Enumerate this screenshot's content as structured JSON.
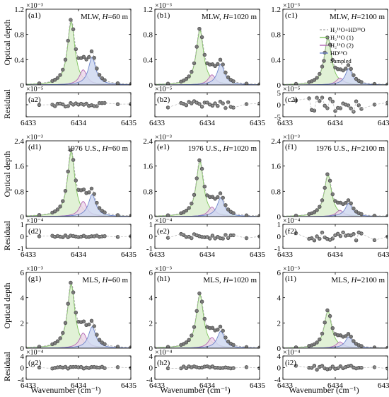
{
  "figure": {
    "legend": {
      "entries": [
        {
          "label": "H₂¹⁶O+HD¹⁶O",
          "kind": "dashed-line",
          "color": "#a8a8a8"
        },
        {
          "label": "H₂¹⁶O (1)",
          "kind": "fill",
          "color": "#7cc35a",
          "fill": "#dcefcf"
        },
        {
          "label": "H₂¹⁶O (2)",
          "kind": "fill",
          "color": "#b066b3",
          "fill": "#ecd6ea"
        },
        {
          "label": "HD¹⁶O",
          "kind": "fill",
          "color": "#6f86cc",
          "fill": "#cfd8f0"
        },
        {
          "label": "Sampled",
          "kind": "marker",
          "color": "#7a7a7a"
        }
      ]
    },
    "xlabel": "Wavenumber (cm⁻¹)",
    "ylabel_main": "Optical depth",
    "ylabel_residual": "Residual"
  },
  "chart_data": [
    {
      "panel": "a1",
      "type": "line",
      "text": "MLW, H=60 m",
      "exponent": "×10⁻³",
      "ylim": [
        0,
        1.2
      ],
      "yticks": [
        0,
        0.4,
        0.8,
        1.2
      ],
      "xticks": [
        6433,
        6434,
        6435
      ],
      "x_range": [
        6433,
        6435
      ],
      "peaks": [
        {
          "name": "H₂¹⁶O (1)",
          "center": 6433.86,
          "height": 1.0
        },
        {
          "name": "H₂¹⁶O (2)",
          "center": 6434.09,
          "height": 0.24
        },
        {
          "name": "HD¹⁶O",
          "center": 6434.26,
          "height": 0.44
        }
      ]
    },
    {
      "panel": "b1",
      "type": "line",
      "text": "MLW, H=1020 m",
      "exponent": "×10⁻³",
      "ylim": [
        0,
        1.2
      ],
      "yticks": [
        0,
        0.4,
        0.8,
        1.2
      ],
      "xticks": [
        6433,
        6434,
        6435
      ],
      "x_range": [
        6433,
        6435
      ],
      "peaks": [
        {
          "name": "H₂¹⁶O (1)",
          "center": 6433.86,
          "height": 0.87
        },
        {
          "name": "H₂¹⁶O (2)",
          "center": 6434.09,
          "height": 0.16
        },
        {
          "name": "HD¹⁶O",
          "center": 6434.26,
          "height": 0.33
        }
      ]
    },
    {
      "panel": "c1",
      "type": "line",
      "text": "MLW, H=2100 m",
      "exponent": "×10⁻³",
      "ylim": [
        0,
        1.2
      ],
      "yticks": [
        0,
        0.4,
        0.8,
        1.2
      ],
      "xticks": [
        6433,
        6434,
        6435
      ],
      "x_range": [
        6433,
        6435
      ],
      "peaks": [
        {
          "name": "H₂¹⁶O (1)",
          "center": 6433.86,
          "height": 0.74
        },
        {
          "name": "H₂¹⁶O (2)",
          "center": 6434.09,
          "height": 0.11
        },
        {
          "name": "HD¹⁶O",
          "center": 6434.26,
          "height": 0.26
        }
      ]
    },
    {
      "panel": "a2",
      "type": "scatter",
      "exponent": "×10⁻⁵",
      "ylim": [
        -5,
        5
      ],
      "yticks": [
        -5,
        0,
        5
      ],
      "ytick_labels": [
        "",
        "",
        ""
      ],
      "xticks": [
        6433,
        6434,
        6435
      ],
      "x_range": [
        6433,
        6435
      ],
      "scatter": 0.15
    },
    {
      "panel": "b2",
      "type": "scatter",
      "exponent": "×10⁻⁵",
      "ylim": [
        -5,
        5
      ],
      "yticks": [
        -5,
        0,
        5
      ],
      "ytick_labels": [
        "",
        "",
        ""
      ],
      "xticks": [
        6433,
        6434,
        6435
      ],
      "x_range": [
        6433,
        6435
      ],
      "scatter": 0.3
    },
    {
      "panel": "c2",
      "type": "scatter",
      "exponent": "×10⁻⁵",
      "ylim": [
        -5,
        5
      ],
      "yticks": [
        -5,
        0,
        5
      ],
      "ytick_labels": [
        "-5",
        "0",
        "5"
      ],
      "xticks": [
        6433,
        6434,
        6435
      ],
      "x_range": [
        6433,
        6435
      ],
      "scatter": 0.6
    },
    {
      "panel": "d1",
      "type": "line",
      "text": "1976 U.S., H=60 m",
      "exponent": "×10⁻³",
      "ylim": [
        0,
        2.4
      ],
      "yticks": [
        0,
        0.8,
        1.6,
        2.4
      ],
      "xticks": [
        6433,
        6434,
        6435
      ],
      "x_range": [
        6433,
        6435
      ],
      "peaks": [
        {
          "name": "H₂¹⁶O (1)",
          "center": 6433.86,
          "height": 2.05
        },
        {
          "name": "H₂¹⁶O (2)",
          "center": 6434.09,
          "height": 0.48
        },
        {
          "name": "HD¹⁶O",
          "center": 6434.26,
          "height": 0.7
        }
      ]
    },
    {
      "panel": "e1",
      "type": "line",
      "text": "1976 U.S., H=1020 m",
      "exponent": "×10⁻³",
      "ylim": [
        0,
        2.4
      ],
      "yticks": [
        0,
        0.8,
        1.6,
        2.4
      ],
      "xticks": [
        6433,
        6434,
        6435
      ],
      "x_range": [
        6433,
        6435
      ],
      "peaks": [
        {
          "name": "H₂¹⁶O (1)",
          "center": 6433.86,
          "height": 1.75
        },
        {
          "name": "H₂¹⁶O (2)",
          "center": 6434.09,
          "height": 0.3
        },
        {
          "name": "HD¹⁶O",
          "center": 6434.26,
          "height": 0.6
        }
      ]
    },
    {
      "panel": "f1",
      "type": "line",
      "text": "1976 U.S., H=2100 m",
      "exponent": "×10⁻³",
      "ylim": [
        0,
        2.4
      ],
      "yticks": [
        0,
        0.8,
        1.6,
        2.4
      ],
      "xticks": [
        6433,
        6434,
        6435
      ],
      "x_range": [
        6433,
        6435
      ],
      "peaks": [
        {
          "name": "H₂¹⁶O (1)",
          "center": 6433.86,
          "height": 1.32
        },
        {
          "name": "H₂¹⁶O (2)",
          "center": 6434.09,
          "height": 0.2
        },
        {
          "name": "HD¹⁶O",
          "center": 6434.26,
          "height": 0.42
        }
      ]
    },
    {
      "panel": "d2",
      "type": "scatter",
      "exponent": "×10⁻⁴",
      "ylim": [
        -1,
        1
      ],
      "yticks": [
        -1,
        0,
        1
      ],
      "ytick_labels": [
        "-1",
        "0",
        "1"
      ],
      "xticks": [
        6433,
        6434,
        6435
      ],
      "x_range": [
        6433,
        6435
      ],
      "scatter": 0.08
    },
    {
      "panel": "e2",
      "type": "scatter",
      "exponent": "×10⁻⁴",
      "ylim": [
        -1,
        1
      ],
      "yticks": [
        -1,
        0,
        1
      ],
      "ytick_labels": [
        "-1",
        "0",
        "1"
      ],
      "xticks": [
        6433,
        6434,
        6435
      ],
      "x_range": [
        6433,
        6435
      ],
      "scatter": 0.2
    },
    {
      "panel": "f2",
      "type": "scatter",
      "exponent": "×10⁻⁴",
      "ylim": [
        -1,
        1
      ],
      "yticks": [
        -1,
        0,
        1
      ],
      "ytick_labels": [
        "-1",
        "0",
        "1"
      ],
      "xticks": [
        6433,
        6434,
        6435
      ],
      "x_range": [
        6433,
        6435
      ],
      "scatter": 0.35
    },
    {
      "panel": "g1",
      "type": "line",
      "text": "MLS, H=60 m",
      "exponent": "×10⁻³",
      "ylim": [
        0,
        6
      ],
      "yticks": [
        0,
        2,
        4,
        6
      ],
      "xticks": [
        6433,
        6434,
        6435
      ],
      "x_range": [
        6433,
        6435
      ],
      "peaks": [
        {
          "name": "H₂¹⁶O (1)",
          "center": 6433.86,
          "height": 5.05
        },
        {
          "name": "H₂¹⁶O (2)",
          "center": 6434.09,
          "height": 1.2
        },
        {
          "name": "HD¹⁶O",
          "center": 6434.26,
          "height": 1.7
        }
      ]
    },
    {
      "panel": "h1",
      "type": "line",
      "text": "MLS, H=1020 m",
      "exponent": "×10⁻³",
      "ylim": [
        0,
        6
      ],
      "yticks": [
        0,
        2,
        4,
        6
      ],
      "xticks": [
        6433,
        6434,
        6435
      ],
      "x_range": [
        6433,
        6435
      ],
      "peaks": [
        {
          "name": "H₂¹⁶O (1)",
          "center": 6433.86,
          "height": 4.25
        },
        {
          "name": "H₂¹⁶O (2)",
          "center": 6434.09,
          "height": 0.85
        },
        {
          "name": "HD¹⁶O",
          "center": 6434.26,
          "height": 1.35
        }
      ]
    },
    {
      "panel": "i1",
      "type": "line",
      "text": "MLS, H=2100 m",
      "exponent": "×10⁻³",
      "ylim": [
        0,
        6
      ],
      "yticks": [
        0,
        2,
        4,
        6
      ],
      "xticks": [
        6433,
        6434,
        6435
      ],
      "x_range": [
        6433,
        6435
      ],
      "peaks": [
        {
          "name": "H₂¹⁶O (1)",
          "center": 6433.86,
          "height": 2.95
        },
        {
          "name": "H₂¹⁶O (2)",
          "center": 6434.09,
          "height": 0.5
        },
        {
          "name": "HD¹⁶O",
          "center": 6434.26,
          "height": 0.9
        }
      ]
    },
    {
      "panel": "g2",
      "type": "scatter",
      "exponent": "×10⁻⁴",
      "ylim": [
        -4,
        4
      ],
      "yticks": [
        -4,
        0,
        4
      ],
      "ytick_labels": [
        "-4",
        "0",
        "4"
      ],
      "xticks": [
        6433,
        6434,
        6435
      ],
      "x_range": [
        6433,
        6435
      ],
      "scatter": 0.08
    },
    {
      "panel": "h2",
      "type": "scatter",
      "exponent": "×10⁻⁴",
      "ylim": [
        -4,
        4
      ],
      "yticks": [
        -4,
        0,
        4
      ],
      "ytick_labels": [
        "-4",
        "0",
        "4"
      ],
      "xticks": [
        6433,
        6434,
        6435
      ],
      "x_range": [
        6433,
        6435
      ],
      "scatter": 0.12
    },
    {
      "panel": "i2",
      "type": "scatter",
      "exponent": "×10⁻⁴",
      "ylim": [
        -4,
        4
      ],
      "yticks": [
        -4,
        0,
        4
      ],
      "ytick_labels": [
        "-4",
        "0",
        "4"
      ],
      "xticks": [
        6433,
        6434,
        6435
      ],
      "x_range": [
        6433,
        6435
      ],
      "scatter": 0.18
    }
  ]
}
